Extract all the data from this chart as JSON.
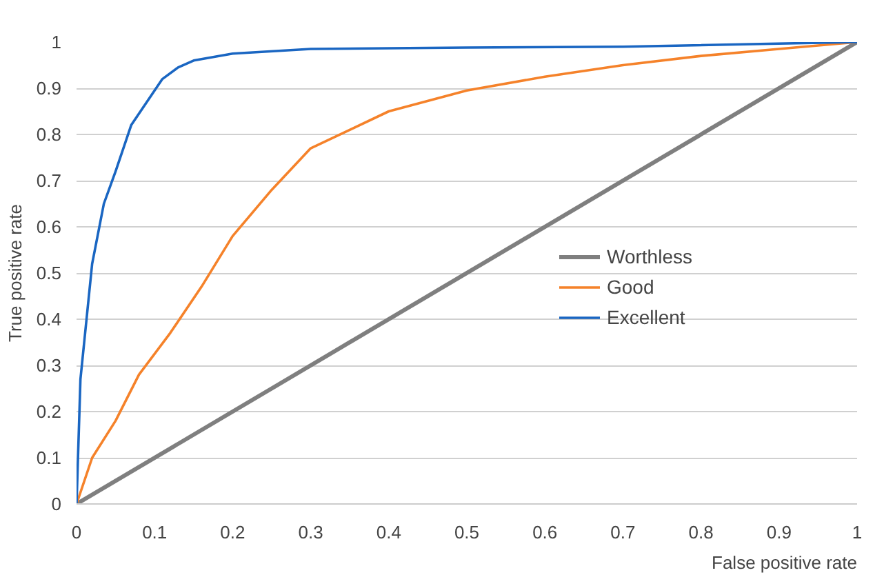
{
  "chart_data": {
    "type": "line",
    "xlabel": "False positive rate",
    "ylabel": "True positive rate",
    "xlim": [
      0,
      1
    ],
    "ylim": [
      0,
      1
    ],
    "xticks": [
      0,
      0.1,
      0.2,
      0.3,
      0.4,
      0.5,
      0.6,
      0.7,
      0.8,
      0.9,
      1
    ],
    "yticks": [
      0,
      0.1,
      0.2,
      0.3,
      0.4,
      0.5,
      0.6,
      0.7,
      0.8,
      0.9,
      1
    ],
    "grid": "y",
    "legend": "right",
    "marker": "none",
    "line_style": "solid",
    "series": [
      {
        "name": "Worthless",
        "color": "#7f7f7f",
        "x": [
          0,
          1
        ],
        "values": [
          0,
          1
        ]
      },
      {
        "name": "Good",
        "color": "#f5822a",
        "x": [
          0,
          0.02,
          0.05,
          0.08,
          0.12,
          0.16,
          0.2,
          0.25,
          0.3,
          0.35,
          0.4,
          0.5,
          0.6,
          0.7,
          0.8,
          0.9,
          1
        ],
        "values": [
          0,
          0.1,
          0.18,
          0.28,
          0.37,
          0.47,
          0.58,
          0.68,
          0.77,
          0.81,
          0.85,
          0.895,
          0.925,
          0.95,
          0.97,
          0.985,
          1
        ]
      },
      {
        "name": "Excellent",
        "color": "#1a66c2",
        "x": [
          0,
          0.005,
          0.02,
          0.035,
          0.05,
          0.07,
          0.09,
          0.11,
          0.13,
          0.15,
          0.2,
          0.3,
          0.5,
          0.7,
          1
        ],
        "values": [
          0,
          0.27,
          0.52,
          0.65,
          0.72,
          0.82,
          0.87,
          0.92,
          0.945,
          0.96,
          0.975,
          0.985,
          0.988,
          0.99,
          1
        ]
      }
    ]
  }
}
